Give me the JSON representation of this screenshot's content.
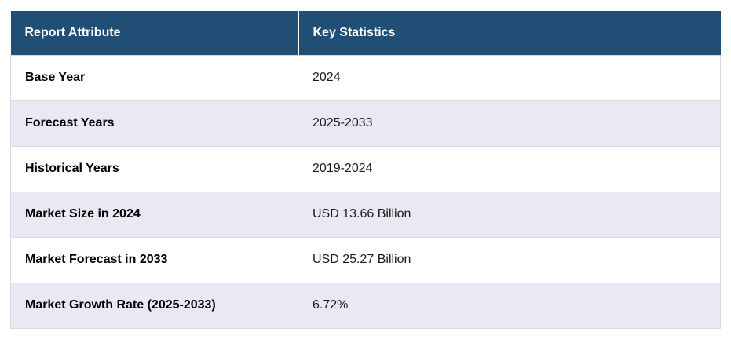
{
  "table": {
    "header": {
      "attribute_label": "Report Attribute",
      "statistics_label": "Key Statistics"
    },
    "rows": [
      {
        "attribute": "Base Year",
        "value": "2024"
      },
      {
        "attribute": "Forecast Years",
        "value": "2025-2033"
      },
      {
        "attribute": "Historical Years",
        "value": "2019-2024"
      },
      {
        "attribute": "Market Size in 2024",
        "value": "USD 13.66 Billion"
      },
      {
        "attribute": "Market Forecast in 2033",
        "value": "USD 25.27 Billion"
      },
      {
        "attribute": "Market Growth Rate (2025-2033)",
        "value": "6.72%"
      }
    ],
    "colors": {
      "header_bg": "#204e74",
      "header_text": "#ffffff",
      "row_bg": "#ffffff",
      "row_alt_bg": "#e9e9f4",
      "border": "#d9d9e0"
    }
  },
  "chart_data": {
    "type": "table",
    "title": "",
    "columns": [
      "Report Attribute",
      "Key Statistics"
    ],
    "rows": [
      [
        "Base Year",
        "2024"
      ],
      [
        "Forecast Years",
        "2025-2033"
      ],
      [
        "Historical Years",
        "2019-2024"
      ],
      [
        "Market Size in 2024",
        "USD 13.66 Billion"
      ],
      [
        "Market Forecast in 2033",
        "USD 25.27 Billion"
      ],
      [
        "Market Growth Rate (2025-2033)",
        "6.72%"
      ]
    ]
  }
}
